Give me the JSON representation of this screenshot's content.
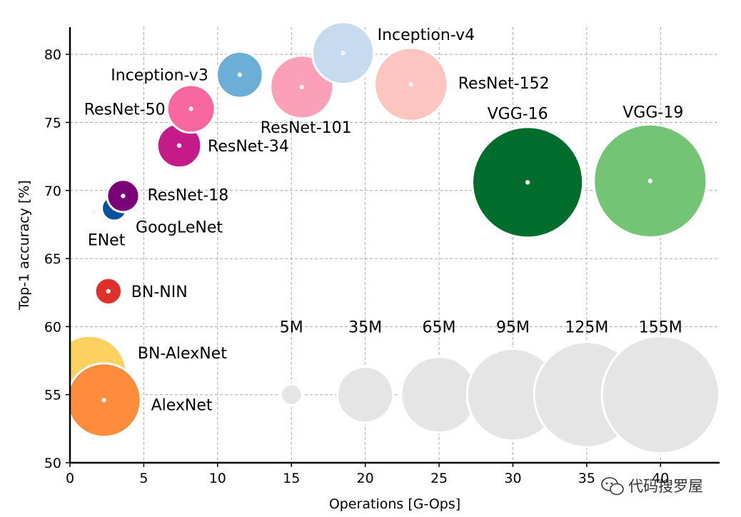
{
  "chart_data": {
    "type": "scatter",
    "xlabel": "Operations [G-Ops]",
    "ylabel": "Top-1 accuracy [%]",
    "xlim": [
      0,
      44
    ],
    "ylim": [
      50,
      82
    ],
    "x_ticks": [
      0,
      5,
      10,
      15,
      20,
      25,
      30,
      35,
      40
    ],
    "y_ticks": [
      50,
      55,
      60,
      65,
      70,
      75,
      80
    ],
    "grid": true,
    "points": [
      {
        "name": "BN-AlexNet",
        "x": 1.3,
        "y": 56.6,
        "params_m": 62,
        "color": "#fdd15f"
      },
      {
        "name": "AlexNet",
        "x": 2.3,
        "y": 54.6,
        "params_m": 61,
        "color": "#fd8d3c"
      },
      {
        "name": "BN-NIN",
        "x": 2.6,
        "y": 62.6,
        "params_m": 8,
        "color": "#e0302b"
      },
      {
        "name": "ENet",
        "x": 1.6,
        "y": 68.4,
        "params_m": 0.4,
        "color": "#000000"
      },
      {
        "name": "GoogLeNet",
        "x": 3.0,
        "y": 68.7,
        "params_m": 7,
        "color": "#08519c"
      },
      {
        "name": "ResNet-18",
        "x": 3.6,
        "y": 69.6,
        "params_m": 11.7,
        "color": "#7a0177"
      },
      {
        "name": "ResNet-34",
        "x": 7.4,
        "y": 73.3,
        "params_m": 21.8,
        "color": "#c51b8a"
      },
      {
        "name": "ResNet-50",
        "x": 8.2,
        "y": 76.0,
        "params_m": 25.6,
        "color": "#f768a1"
      },
      {
        "name": "Inception-v3",
        "x": 11.5,
        "y": 78.5,
        "params_m": 24,
        "color": "#6baed6"
      },
      {
        "name": "ResNet-101",
        "x": 15.7,
        "y": 77.6,
        "params_m": 44.5,
        "color": "#fba0b8"
      },
      {
        "name": "Inception-v4",
        "x": 18.5,
        "y": 80.1,
        "params_m": 43,
        "color": "#c6dbef"
      },
      {
        "name": "ResNet-152",
        "x": 23.1,
        "y": 77.8,
        "params_m": 60.2,
        "color": "#fcc5c0"
      },
      {
        "name": "VGG-16",
        "x": 31.0,
        "y": 70.6,
        "params_m": 138,
        "color": "#006d2c"
      },
      {
        "name": "VGG-19",
        "x": 39.3,
        "y": 70.7,
        "params_m": 143.7,
        "color": "#74c476"
      }
    ],
    "size_legend": [
      {
        "label": "5M",
        "x": 15,
        "y": 55,
        "params_m": 5
      },
      {
        "label": "35M",
        "x": 20,
        "y": 55,
        "params_m": 35
      },
      {
        "label": "65M",
        "x": 25,
        "y": 55,
        "params_m": 65
      },
      {
        "label": "95M",
        "x": 30,
        "y": 55,
        "params_m": 95
      },
      {
        "label": "125M",
        "x": 35,
        "y": 55,
        "params_m": 125
      },
      {
        "label": "155M",
        "x": 40,
        "y": 55,
        "params_m": 155
      }
    ],
    "size_legend_color": "#e5e5e5"
  },
  "watermark": {
    "text": "代码搜罗屋",
    "icon": "wechat-icon"
  }
}
